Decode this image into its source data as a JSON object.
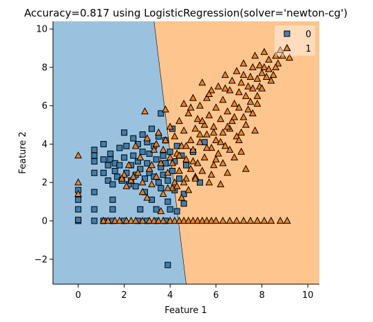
{
  "chart_data": {
    "type": "scatter",
    "title": "Accuracy=0.817 using LogisticRegression(solver='newton-cg')",
    "xlabel": "Feature 1",
    "ylabel": "Feature 2",
    "xlim": [
      -1.1,
      10.5
    ],
    "ylim": [
      -3.3,
      10.4
    ],
    "xticks": [
      0,
      2,
      4,
      6,
      8,
      10
    ],
    "yticks": [
      -2,
      0,
      2,
      4,
      6,
      8,
      10
    ],
    "xtick_labels": [
      "0",
      "2",
      "4",
      "6",
      "8",
      "10"
    ],
    "ytick_labels": [
      "−2",
      "0",
      "2",
      "4",
      "6",
      "8",
      "10"
    ],
    "grid": false,
    "legend_position": "top-right",
    "decision_boundary": {
      "points": [
        [
          3.3,
          10.4
        ],
        [
          4.7,
          -3.3
        ]
      ]
    },
    "regions": [
      {
        "class": "0",
        "color": "#9ac2de",
        "side": "left"
      },
      {
        "class": "1",
        "color": "#ffc58f",
        "side": "right"
      }
    ],
    "series": [
      {
        "name": "0",
        "marker": "square",
        "color": "#3a7aab",
        "points": [
          [
            0,
            0
          ],
          [
            0,
            0.05
          ],
          [
            0,
            0.6
          ],
          [
            0,
            1.1
          ],
          [
            0,
            1.6
          ],
          [
            0.7,
            0
          ],
          [
            0.7,
            0.6
          ],
          [
            0.7,
            1.5
          ],
          [
            0.7,
            2.5
          ],
          [
            0.7,
            3.1
          ],
          [
            0.7,
            3.4
          ],
          [
            0.7,
            3.7
          ],
          [
            1.1,
            0
          ],
          [
            1.1,
            2.5
          ],
          [
            1.1,
            3.2
          ],
          [
            1.1,
            4.0
          ],
          [
            1.3,
            2.1
          ],
          [
            1.3,
            2.9
          ],
          [
            1.4,
            3.2
          ],
          [
            1.4,
            3.5
          ],
          [
            1.5,
            1.9
          ],
          [
            1.5,
            0.6
          ],
          [
            1.5,
            1.1
          ],
          [
            1.6,
            2.6
          ],
          [
            1.6,
            3.0
          ],
          [
            1.7,
            2.3
          ],
          [
            1.8,
            3.8
          ],
          [
            1.8,
            2.9
          ],
          [
            1.9,
            2.1
          ],
          [
            2.0,
            3.3
          ],
          [
            2.0,
            4.6
          ],
          [
            2.1,
            2.5
          ],
          [
            2.1,
            3.9
          ],
          [
            2.2,
            1.9
          ],
          [
            2.3,
            2.9
          ],
          [
            2.3,
            2.1
          ],
          [
            2.4,
            3.4
          ],
          [
            2.4,
            4.3
          ],
          [
            2.5,
            2.4
          ],
          [
            2.5,
            1.8
          ],
          [
            2.6,
            3.1
          ],
          [
            2.6,
            4.0
          ],
          [
            2.7,
            2.7
          ],
          [
            2.7,
            0.6
          ],
          [
            2.8,
            3.6
          ],
          [
            2.8,
            4.5
          ],
          [
            2.9,
            2.2
          ],
          [
            2.9,
            1.5
          ],
          [
            3.0,
            3.0
          ],
          [
            3.0,
            4.1
          ],
          [
            3.1,
            2.5
          ],
          [
            3.1,
            3.5
          ],
          [
            3.2,
            1.1
          ],
          [
            3.2,
            4.8
          ],
          [
            3.3,
            2.3
          ],
          [
            3.3,
            3.9
          ],
          [
            3.4,
            0.6
          ],
          [
            3.4,
            3.2
          ],
          [
            3.5,
            2.0
          ],
          [
            3.5,
            4.4
          ],
          [
            3.6,
            2.8
          ],
          [
            3.6,
            1.7
          ],
          [
            3.6,
            5.6
          ],
          [
            3.7,
            3.4
          ],
          [
            3.7,
            2.4
          ],
          [
            3.8,
            3.0
          ],
          [
            3.8,
            4.2
          ],
          [
            3.9,
            2.1
          ],
          [
            3.9,
            1.0
          ],
          [
            4.0,
            3.6
          ],
          [
            4.0,
            0.6
          ],
          [
            4.1,
            2.6
          ],
          [
            4.1,
            4.8
          ],
          [
            4.2,
            3.1
          ],
          [
            4.2,
            1.6
          ],
          [
            4.3,
            0.5
          ],
          [
            4.3,
            3.9
          ],
          [
            4.4,
            2.2
          ],
          [
            4.5,
            3.4
          ],
          [
            4.6,
            1.4
          ],
          [
            4.6,
            0.9
          ],
          [
            4.7,
            2.9
          ],
          [
            5.0,
            3.6
          ],
          [
            5.3,
            2.0
          ],
          [
            5.5,
            4.1
          ],
          [
            1.5,
            0
          ],
          [
            2.0,
            0
          ],
          [
            2.6,
            0
          ],
          [
            3.0,
            0
          ],
          [
            3.4,
            0
          ],
          [
            3.8,
            0
          ],
          [
            3.9,
            -2.3
          ]
        ]
      },
      {
        "name": "1",
        "marker": "triangle",
        "color": "#f07f1e",
        "points": [
          [
            0,
            3.4
          ],
          [
            0,
            2.0
          ],
          [
            0,
            1.4
          ],
          [
            1.1,
            0
          ],
          [
            1.3,
            0
          ],
          [
            1.6,
            0
          ],
          [
            1.8,
            0
          ],
          [
            2.1,
            0
          ],
          [
            2.3,
            0
          ],
          [
            2.5,
            0
          ],
          [
            2.8,
            0
          ],
          [
            3.1,
            0
          ],
          [
            3.3,
            0
          ],
          [
            3.5,
            0
          ],
          [
            3.7,
            0
          ],
          [
            4.0,
            0
          ],
          [
            4.2,
            0
          ],
          [
            4.4,
            0
          ],
          [
            4.6,
            0
          ],
          [
            4.8,
            0
          ],
          [
            5.0,
            0
          ],
          [
            5.2,
            0
          ],
          [
            5.4,
            0
          ],
          [
            5.6,
            0
          ],
          [
            5.8,
            0
          ],
          [
            6.0,
            0
          ],
          [
            6.3,
            0
          ],
          [
            6.6,
            0
          ],
          [
            6.9,
            0
          ],
          [
            7.2,
            0
          ],
          [
            7.5,
            0
          ],
          [
            7.8,
            0
          ],
          [
            8.1,
            0
          ],
          [
            8.4,
            0
          ],
          [
            8.8,
            0
          ],
          [
            9.1,
            0
          ],
          [
            2.0,
            2.4
          ],
          [
            2.2,
            2.9
          ],
          [
            2.3,
            2.1
          ],
          [
            2.5,
            3.9
          ],
          [
            2.6,
            2.5
          ],
          [
            2.7,
            3.3
          ],
          [
            2.8,
            2.0
          ],
          [
            2.9,
            5.7
          ],
          [
            3.0,
            4.3
          ],
          [
            3.1,
            2.7
          ],
          [
            3.2,
            1.9
          ],
          [
            3.3,
            3.7
          ],
          [
            3.4,
            2.3
          ],
          [
            3.5,
            4.6
          ],
          [
            3.6,
            3.0
          ],
          [
            3.6,
            0.5
          ],
          [
            3.7,
            1.4
          ],
          [
            3.8,
            4.2
          ],
          [
            3.8,
            5.8
          ],
          [
            3.9,
            2.5
          ],
          [
            4.0,
            3.3
          ],
          [
            4.0,
            4.9
          ],
          [
            4.1,
            1.7
          ],
          [
            4.2,
            2.0
          ],
          [
            4.2,
            4.4
          ],
          [
            4.3,
            3.5
          ],
          [
            4.4,
            5.2
          ],
          [
            4.4,
            2.6
          ],
          [
            4.5,
            3.9
          ],
          [
            4.5,
            1.2
          ],
          [
            4.6,
            4.7
          ],
          [
            4.6,
            6.1
          ],
          [
            4.7,
            2.2
          ],
          [
            4.7,
            3.2
          ],
          [
            4.8,
            5.6
          ],
          [
            4.8,
            1.6
          ],
          [
            4.9,
            4.2
          ],
          [
            4.9,
            2.7
          ],
          [
            5.0,
            6.4
          ],
          [
            5.0,
            3.7
          ],
          [
            5.1,
            4.8
          ],
          [
            5.1,
            2.3
          ],
          [
            5.2,
            5.3
          ],
          [
            5.2,
            3.0
          ],
          [
            5.3,
            6.0
          ],
          [
            5.3,
            4.1
          ],
          [
            5.4,
            2.6
          ],
          [
            5.4,
            7.2
          ],
          [
            5.5,
            5.0
          ],
          [
            5.5,
            3.3
          ],
          [
            5.6,
            6.4
          ],
          [
            5.6,
            4.5
          ],
          [
            5.7,
            2.0
          ],
          [
            5.7,
            5.5
          ],
          [
            5.8,
            3.8
          ],
          [
            5.8,
            6.8
          ],
          [
            5.9,
            4.9
          ],
          [
            5.9,
            2.9
          ],
          [
            6.0,
            5.9
          ],
          [
            6.0,
            4.2
          ],
          [
            6.1,
            7.0
          ],
          [
            6.1,
            3.5
          ],
          [
            6.2,
            5.3
          ],
          [
            6.2,
            1.9
          ],
          [
            6.3,
            6.3
          ],
          [
            6.3,
            4.6
          ],
          [
            6.4,
            7.6
          ],
          [
            6.4,
            3.9
          ],
          [
            6.5,
            5.7
          ],
          [
            6.5,
            2.5
          ],
          [
            6.6,
            6.8
          ],
          [
            6.6,
            4.8
          ],
          [
            6.7,
            7.3
          ],
          [
            6.7,
            5.2
          ],
          [
            6.8,
            3.3
          ],
          [
            6.8,
            6.1
          ],
          [
            6.9,
            7.8
          ],
          [
            6.9,
            4.4
          ],
          [
            7.0,
            5.9
          ],
          [
            7.0,
            6.7
          ],
          [
            7.1,
            3.6
          ],
          [
            7.1,
            7.2
          ],
          [
            7.2,
            5.4
          ],
          [
            7.2,
            8.2
          ],
          [
            7.3,
            6.5
          ],
          [
            7.3,
            2.7
          ],
          [
            7.4,
            7.0
          ],
          [
            7.4,
            5.8
          ],
          [
            7.5,
            7.5
          ],
          [
            7.5,
            6.2
          ],
          [
            7.6,
            8.0
          ],
          [
            7.6,
            6.9
          ],
          [
            7.7,
            4.7
          ],
          [
            7.8,
            7.4
          ],
          [
            7.8,
            6.5
          ],
          [
            7.9,
            8.1
          ],
          [
            7.9,
            7.0
          ],
          [
            8.0,
            7.7
          ],
          [
            8.0,
            6.9
          ],
          [
            8.1,
            8.0
          ],
          [
            8.2,
            7.5
          ],
          [
            8.3,
            7.9
          ],
          [
            8.3,
            8.4
          ],
          [
            8.5,
            7.6
          ],
          [
            8.6,
            8.6
          ],
          [
            8.7,
            8.2
          ],
          [
            8.9,
            8.6
          ],
          [
            9.1,
            9.0
          ],
          [
            9.2,
            8.5
          ],
          [
            8.6,
            8.0
          ],
          [
            8.1,
            8.8
          ],
          [
            1.9,
            2.2
          ],
          [
            2.4,
            2.3
          ],
          [
            2.1,
            1.8
          ],
          [
            2.8,
            1.5
          ],
          [
            3.0,
            1.2
          ],
          [
            3.2,
            2.9
          ],
          [
            3.4,
            4.0
          ],
          [
            3.7,
            3.7
          ],
          [
            4.1,
            3.0
          ],
          [
            4.4,
            3.4
          ],
          [
            4.7,
            3.9
          ],
          [
            5.0,
            3.1
          ],
          [
            5.3,
            4.5
          ],
          [
            5.6,
            3.8
          ],
          [
            5.9,
            4.6
          ],
          [
            6.2,
            4.1
          ],
          [
            6.5,
            4.9
          ],
          [
            6.8,
            5.4
          ],
          [
            7.0,
            4.2
          ],
          [
            7.3,
            5.0
          ],
          [
            7.6,
            5.6
          ],
          [
            7.8,
            6.1
          ],
          [
            6.3,
            3.0
          ],
          [
            5.8,
            2.4
          ],
          [
            5.1,
            2.2
          ],
          [
            4.6,
            2.0
          ],
          [
            4.3,
            1.8
          ],
          [
            3.9,
            1.7
          ],
          [
            6.0,
            3.2
          ],
          [
            6.6,
            3.7
          ],
          [
            7.1,
            4.6
          ],
          [
            5.4,
            5.2
          ],
          [
            4.9,
            5.9
          ],
          [
            5.7,
            6.6
          ],
          [
            6.4,
            6.9
          ],
          [
            7.2,
            7.6
          ],
          [
            7.7,
            8.6
          ],
          [
            8.4,
            7.3
          ],
          [
            8.8,
            8.9
          ]
        ]
      }
    ]
  }
}
